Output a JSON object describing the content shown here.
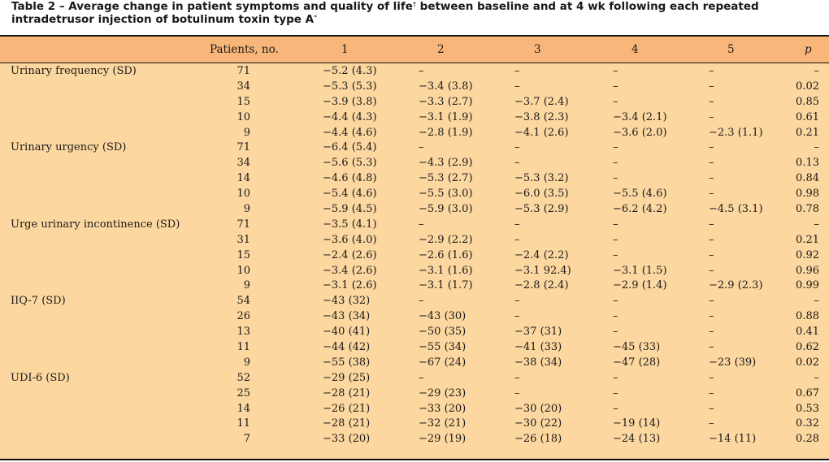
{
  "caption": {
    "text_a": "Table 2 – Average change in patient symptoms and quality of life",
    "sup_a": "†",
    "text_b": " between baseline and at 4 wk following each repeated intradetrusor injection of botulinum toxin type A",
    "sup_b": "*"
  },
  "header": {
    "patients": "Patients, no.",
    "c1": "1",
    "c2": "2",
    "c3": "3",
    "c4": "4",
    "c5": "5",
    "p": "p"
  },
  "rows": [
    {
      "label": "Urinary frequency (SD)",
      "n": "71",
      "c1": "−5.2 (4.3)",
      "c2": "–",
      "c3": "–",
      "c4": "–",
      "c5": "–",
      "p": "–"
    },
    {
      "label": "",
      "n": "34",
      "c1": "−5.3 (5.3)",
      "c2": "−3.4 (3.8)",
      "c3": "–",
      "c4": "–",
      "c5": "–",
      "p": "0.02"
    },
    {
      "label": "",
      "n": "15",
      "c1": "−3.9 (3.8)",
      "c2": "−3.3 (2.7)",
      "c3": "−3.7 (2.4)",
      "c4": "–",
      "c5": "–",
      "p": "0.85"
    },
    {
      "label": "",
      "n": "10",
      "c1": "−4.4 (4.3)",
      "c2": "−3.1 (1.9)",
      "c3": "−3.8 (2.3)",
      "c4": "−3.4 (2.1)",
      "c5": "–",
      "p": "0.61"
    },
    {
      "label": "",
      "n": "9",
      "c1": "−4.4 (4.6)",
      "c2": "−2.8 (1.9)",
      "c3": "−4.1 (2.6)",
      "c4": "−3.6 (2.0)",
      "c5": "−2.3 (1.1)",
      "p": "0.21"
    },
    {
      "label": "Urinary urgency (SD)",
      "n": "71",
      "c1": "−6.4 (5.4)",
      "c2": "–",
      "c3": "–",
      "c4": "–",
      "c5": "–",
      "p": "–"
    },
    {
      "label": "",
      "n": "34",
      "c1": "−5.6 (5.3)",
      "c2": "−4.3 (2.9)",
      "c3": "–",
      "c4": "–",
      "c5": "–",
      "p": "0.13"
    },
    {
      "label": "",
      "n": "14",
      "c1": "−4.6 (4.8)",
      "c2": "−5.3 (2.7)",
      "c3": "−5.3 (3.2)",
      "c4": "–",
      "c5": "–",
      "p": "0.84"
    },
    {
      "label": "",
      "n": "10",
      "c1": "−5.4 (4.6)",
      "c2": "−5.5 (3.0)",
      "c3": "−6.0 (3.5)",
      "c4": "−5.5 (4.6)",
      "c5": "–",
      "p": "0.98"
    },
    {
      "label": "",
      "n": "9",
      "c1": "−5.9 (4.5)",
      "c2": "−5.9 (3.0)",
      "c3": "−5.3 (2.9)",
      "c4": "−6.2 (4.2)",
      "c5": "−4.5 (3.1)",
      "p": "0.78"
    },
    {
      "label": "Urge urinary incontinence (SD)",
      "n": "71",
      "c1": "−3.5 (4.1)",
      "c2": "–",
      "c3": "–",
      "c4": "–",
      "c5": "–",
      "p": "–"
    },
    {
      "label": "",
      "n": "31",
      "c1": "−3.6 (4.0)",
      "c2": "−2.9 (2.2)",
      "c3": "–",
      "c4": "–",
      "c5": "–",
      "p": "0.21"
    },
    {
      "label": "",
      "n": "15",
      "c1": "−2.4 (2.6)",
      "c2": "−2.6 (1.6)",
      "c3": "−2.4 (2.2)",
      "c4": "–",
      "c5": "–",
      "p": "0.92"
    },
    {
      "label": "",
      "n": "10",
      "c1": "−3.4 (2.6)",
      "c2": "−3.1 (1.6)",
      "c3": "−3.1 92.4)",
      "c4": "−3.1 (1.5)",
      "c5": "–",
      "p": "0.96"
    },
    {
      "label": "",
      "n": "9",
      "c1": "−3.1 (2.6)",
      "c2": "−3.1 (1.7)",
      "c3": "−2.8 (2.4)",
      "c4": "−2.9 (1.4)",
      "c5": "−2.9 (2.3)",
      "p": "0.99"
    },
    {
      "label": "IIQ-7 (SD)",
      "n": "54",
      "c1": "−43 (32)",
      "c2": "–",
      "c3": "–",
      "c4": "–",
      "c5": "–",
      "p": "–"
    },
    {
      "label": "",
      "n": "26",
      "c1": "−43 (34)",
      "c2": "−43 (30)",
      "c3": "–",
      "c4": "–",
      "c5": "–",
      "p": "0.88"
    },
    {
      "label": "",
      "n": "13",
      "c1": "−40 (41)",
      "c2": "−50 (35)",
      "c3": "−37 (31)",
      "c4": "–",
      "c5": "–",
      "p": "0.41"
    },
    {
      "label": "",
      "n": "11",
      "c1": "−44 (42)",
      "c2": "−55 (34)",
      "c3": "−41 (33)",
      "c4": "−45 (33)",
      "c5": "–",
      "p": "0.62"
    },
    {
      "label": "",
      "n": "9",
      "c1": "−55 (38)",
      "c2": "−67 (24)",
      "c3": "−38 (34)",
      "c4": "−47 (28)",
      "c5": "−23 (39)",
      "p": "0.02"
    },
    {
      "label": "UDI-6 (SD)",
      "n": "52",
      "c1": "−29 (25)",
      "c2": "–",
      "c3": "–",
      "c4": "–",
      "c5": "–",
      "p": "–"
    },
    {
      "label": "",
      "n": "25",
      "c1": "−28 (21)",
      "c2": "−29 (23)",
      "c3": "–",
      "c4": "–",
      "c5": "–",
      "p": "0.67"
    },
    {
      "label": "",
      "n": "14",
      "c1": "−26 (21)",
      "c2": "−33 (20)",
      "c3": "−30 (20)",
      "c4": "–",
      "c5": "–",
      "p": "0.53"
    },
    {
      "label": "",
      "n": "11",
      "c1": "−28 (21)",
      "c2": "−32 (21)",
      "c3": "−30 (22)",
      "c4": "−19 (14)",
      "c5": "–",
      "p": "0.32"
    },
    {
      "label": "",
      "n": "7",
      "c1": "−33 (20)",
      "c2": "−29 (19)",
      "c3": "−26 (18)",
      "c4": "−24 (13)",
      "c5": "−14 (11)",
      "p": "0.28"
    }
  ]
}
